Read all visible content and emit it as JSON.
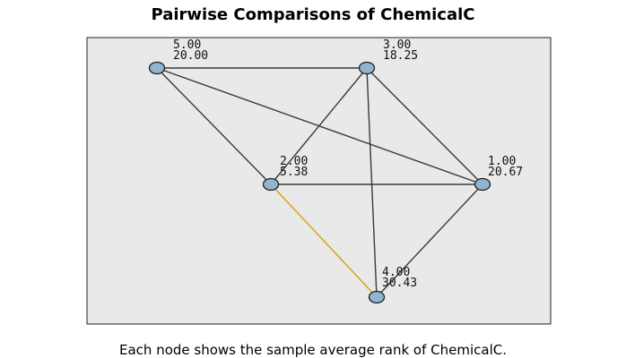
{
  "title": "Pairwise Comparisons of ChemicalC",
  "caption": "Each node shows the sample average rank of ChemicalC.",
  "colors": {
    "plot_background": "#e9e9e9",
    "node_fill": "#8fb5d3",
    "edge_default": "#3a3a3a",
    "edge_significant": "#d4a20a"
  },
  "nodes": [
    {
      "id": "5",
      "label": "5.00",
      "mean_rank": "20.00"
    },
    {
      "id": "3",
      "label": "3.00",
      "mean_rank": "18.25"
    },
    {
      "id": "2",
      "label": "2.00",
      "mean_rank": "5.38"
    },
    {
      "id": "1",
      "label": "1.00",
      "mean_rank": "20.67"
    },
    {
      "id": "4",
      "label": "4.00",
      "mean_rank": "30.43"
    }
  ],
  "edges": [
    {
      "from": "5",
      "to": "3",
      "significant": false
    },
    {
      "from": "5",
      "to": "1",
      "significant": false
    },
    {
      "from": "5",
      "to": "2",
      "significant": false
    },
    {
      "from": "3",
      "to": "2",
      "significant": false
    },
    {
      "from": "3",
      "to": "1",
      "significant": false
    },
    {
      "from": "3",
      "to": "4",
      "significant": false
    },
    {
      "from": "2",
      "to": "1",
      "significant": false
    },
    {
      "from": "2",
      "to": "4",
      "significant": true
    },
    {
      "from": "1",
      "to": "4",
      "significant": false
    }
  ]
}
